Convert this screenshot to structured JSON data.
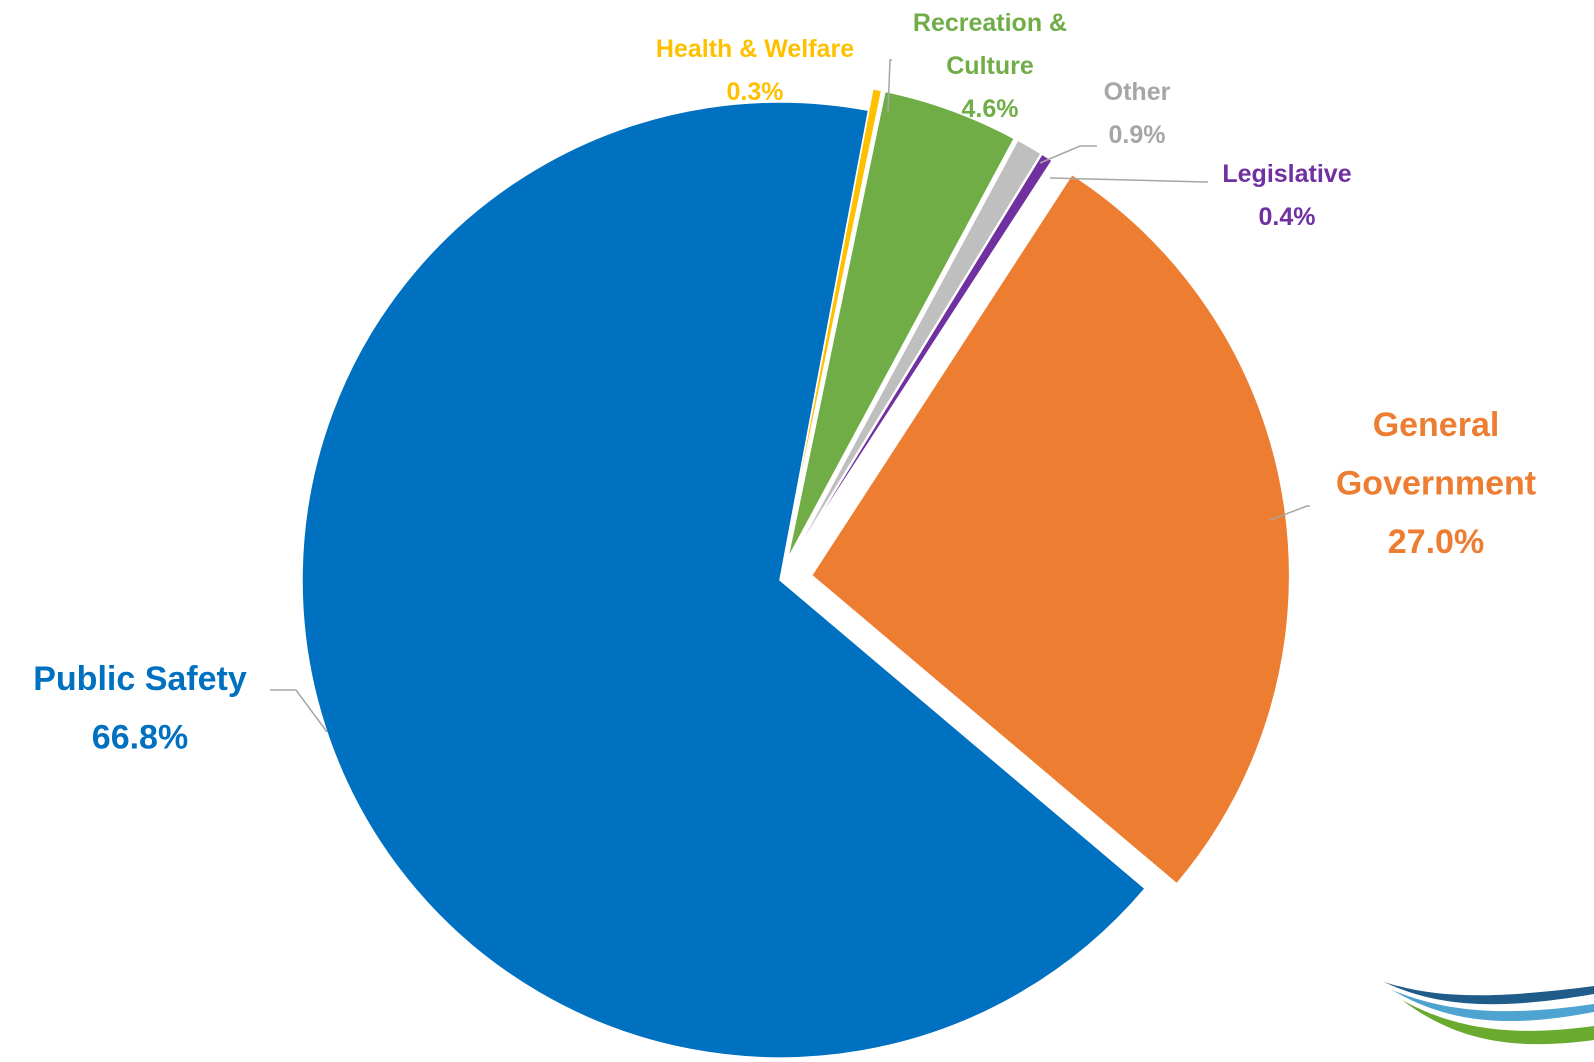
{
  "chart_data": {
    "type": "pie",
    "title": "",
    "categories": [
      "General Government",
      "Public Safety",
      "Health & Welfare",
      "Recreation & Culture",
      "Other",
      "Legislative"
    ],
    "series": [
      {
        "values": [
          27.0,
          66.8,
          0.3,
          4.6,
          0.9,
          0.4
        ]
      }
    ],
    "slices": [
      {
        "label_lines": [
          "General",
          "Government"
        ],
        "value": 27.0,
        "value_text": "27.0%",
        "color": "#ED7D31"
      },
      {
        "label_lines": [
          "Public Safety"
        ],
        "value": 66.8,
        "value_text": "66.8%",
        "color": "#0070C0"
      },
      {
        "label_lines": [
          "Health & Welfare"
        ],
        "value": 0.3,
        "value_text": "0.3%",
        "color": "#FFC000"
      },
      {
        "label_lines": [
          "Recreation &",
          "Culture"
        ],
        "value": 4.6,
        "value_text": "4.6%",
        "color": "#70AD47"
      },
      {
        "label_lines": [
          "Other"
        ],
        "value": 0.9,
        "value_text": "0.9%",
        "color": "#BFBFBF"
      },
      {
        "label_lines": [
          "Legislative"
        ],
        "value": 0.4,
        "value_text": "0.4%",
        "color": "#7030A0"
      }
    ],
    "legend": "none",
    "leader_line_color": "#A6A6A6",
    "logo_colors": [
      "#1F5C8A",
      "#4FA3D1",
      "#6AAA2F"
    ]
  }
}
